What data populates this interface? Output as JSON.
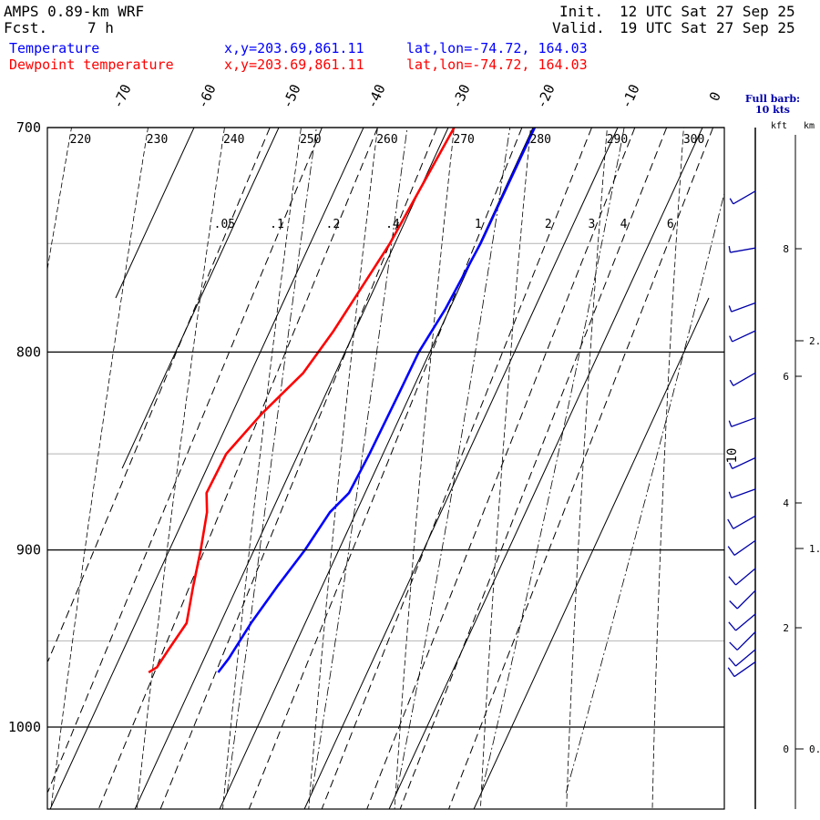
{
  "header": {
    "model": "AMPS 0.89-km WRF",
    "fcst_label": "Fcst.",
    "fcst_value": "7 h",
    "init_label": "Init.",
    "init_value": "12 UTC Sat 27 Sep 25",
    "valid_label": "Valid.",
    "valid_value": "19 UTC Sat 27 Sep 25",
    "temp_label": "Temperature",
    "temp_xy": "x,y=203.69,861.11",
    "temp_latlon": "lat,lon=-74.72, 164.03",
    "dew_label": "Dewpoint temperature",
    "dew_xy": "x,y=203.69,861.11",
    "dew_latlon": "lat,lon=-74.72, 164.03"
  },
  "legend": {
    "barb_line1": "Full barb:",
    "barb_line2": "10 kts",
    "kft_label": "kft",
    "km_label": "km"
  },
  "chart_data": {
    "type": "line",
    "plot_kind": "skew-T log-p",
    "y_axis": {
      "scale": "log",
      "ticks": [
        700,
        800,
        900,
        1000
      ],
      "range": [
        700,
        1040
      ]
    },
    "isotherm_labels": [
      "-70",
      "-60",
      "-50",
      "-40",
      "-30",
      "-20",
      "-10",
      "0"
    ],
    "isotherms": [
      -80,
      -70,
      -60,
      -50,
      -40,
      -30,
      -20,
      -10,
      0,
      10
    ],
    "dry_adiabat_labels": [
      "220",
      "230",
      "240",
      "250",
      "260",
      "270",
      "280",
      "290",
      "300"
    ],
    "mixing_ratio_labels": [
      ".05",
      ".1",
      ".2",
      ".4",
      "1",
      "2",
      "3",
      "4",
      "6"
    ],
    "mixing_ratio_values": [
      0.05,
      0.1,
      0.2,
      0.4,
      1,
      2,
      3,
      4,
      6
    ],
    "series": [
      {
        "name": "Temperature",
        "color": "#0000ff",
        "points": [
          {
            "p": 700,
            "t": -19.8
          },
          {
            "p": 750,
            "t": -19.9
          },
          {
            "p": 780,
            "t": -20.5
          },
          {
            "p": 800,
            "t": -21.3
          },
          {
            "p": 820,
            "t": -21.4
          },
          {
            "p": 850,
            "t": -21.6
          },
          {
            "p": 870,
            "t": -21.9
          },
          {
            "p": 880,
            "t": -23.1
          },
          {
            "p": 900,
            "t": -24.0
          },
          {
            "p": 920,
            "t": -25.3
          },
          {
            "p": 940,
            "t": -26.4
          },
          {
            "p": 960,
            "t": -27.1
          },
          {
            "p": 968,
            "t": -27.6
          }
        ]
      },
      {
        "name": "Dewpoint temperature",
        "color": "#ff0000",
        "points": [
          {
            "p": 700,
            "t": -29.3
          },
          {
            "p": 750,
            "t": -30.6
          },
          {
            "p": 790,
            "t": -32.5
          },
          {
            "p": 810,
            "t": -33.8
          },
          {
            "p": 830,
            "t": -36.5
          },
          {
            "p": 850,
            "t": -38.5
          },
          {
            "p": 870,
            "t": -38.7
          },
          {
            "p": 880,
            "t": -37.6
          },
          {
            "p": 900,
            "t": -36.3
          },
          {
            "p": 920,
            "t": -35.2
          },
          {
            "p": 940,
            "t": -34.0
          },
          {
            "p": 955,
            "t": -34.7
          },
          {
            "p": 965,
            "t": -35.1
          },
          {
            "p": 968,
            "t": -35.8
          }
        ]
      }
    ],
    "altitude_kft_labels": [
      "8",
      "6",
      "4",
      "2",
      "0"
    ],
    "altitude_km_labels": [
      "2.",
      "1.",
      "0."
    ],
    "wind_note_label": "10",
    "winds": [
      {
        "p": 727,
        "dir": 240,
        "speed_kt": 5
      },
      {
        "p": 752,
        "dir": 260,
        "speed_kt": 5
      },
      {
        "p": 777,
        "dir": 250,
        "speed_kt": 5
      },
      {
        "p": 790,
        "dir": 245,
        "speed_kt": 5
      },
      {
        "p": 810,
        "dir": 240,
        "speed_kt": 5
      },
      {
        "p": 832,
        "dir": 250,
        "speed_kt": 5
      },
      {
        "p": 852,
        "dir": 245,
        "speed_kt": 5
      },
      {
        "p": 868,
        "dir": 250,
        "speed_kt": 5
      },
      {
        "p": 882,
        "dir": 240,
        "speed_kt": 10
      },
      {
        "p": 895,
        "dir": 235,
        "speed_kt": 10
      },
      {
        "p": 910,
        "dir": 230,
        "speed_kt": 10
      },
      {
        "p": 922,
        "dir": 225,
        "speed_kt": 10
      },
      {
        "p": 935,
        "dir": 230,
        "speed_kt": 10
      },
      {
        "p": 945,
        "dir": 225,
        "speed_kt": 10
      },
      {
        "p": 955,
        "dir": 230,
        "speed_kt": 10
      },
      {
        "p": 962,
        "dir": 235,
        "speed_kt": 10
      }
    ]
  }
}
